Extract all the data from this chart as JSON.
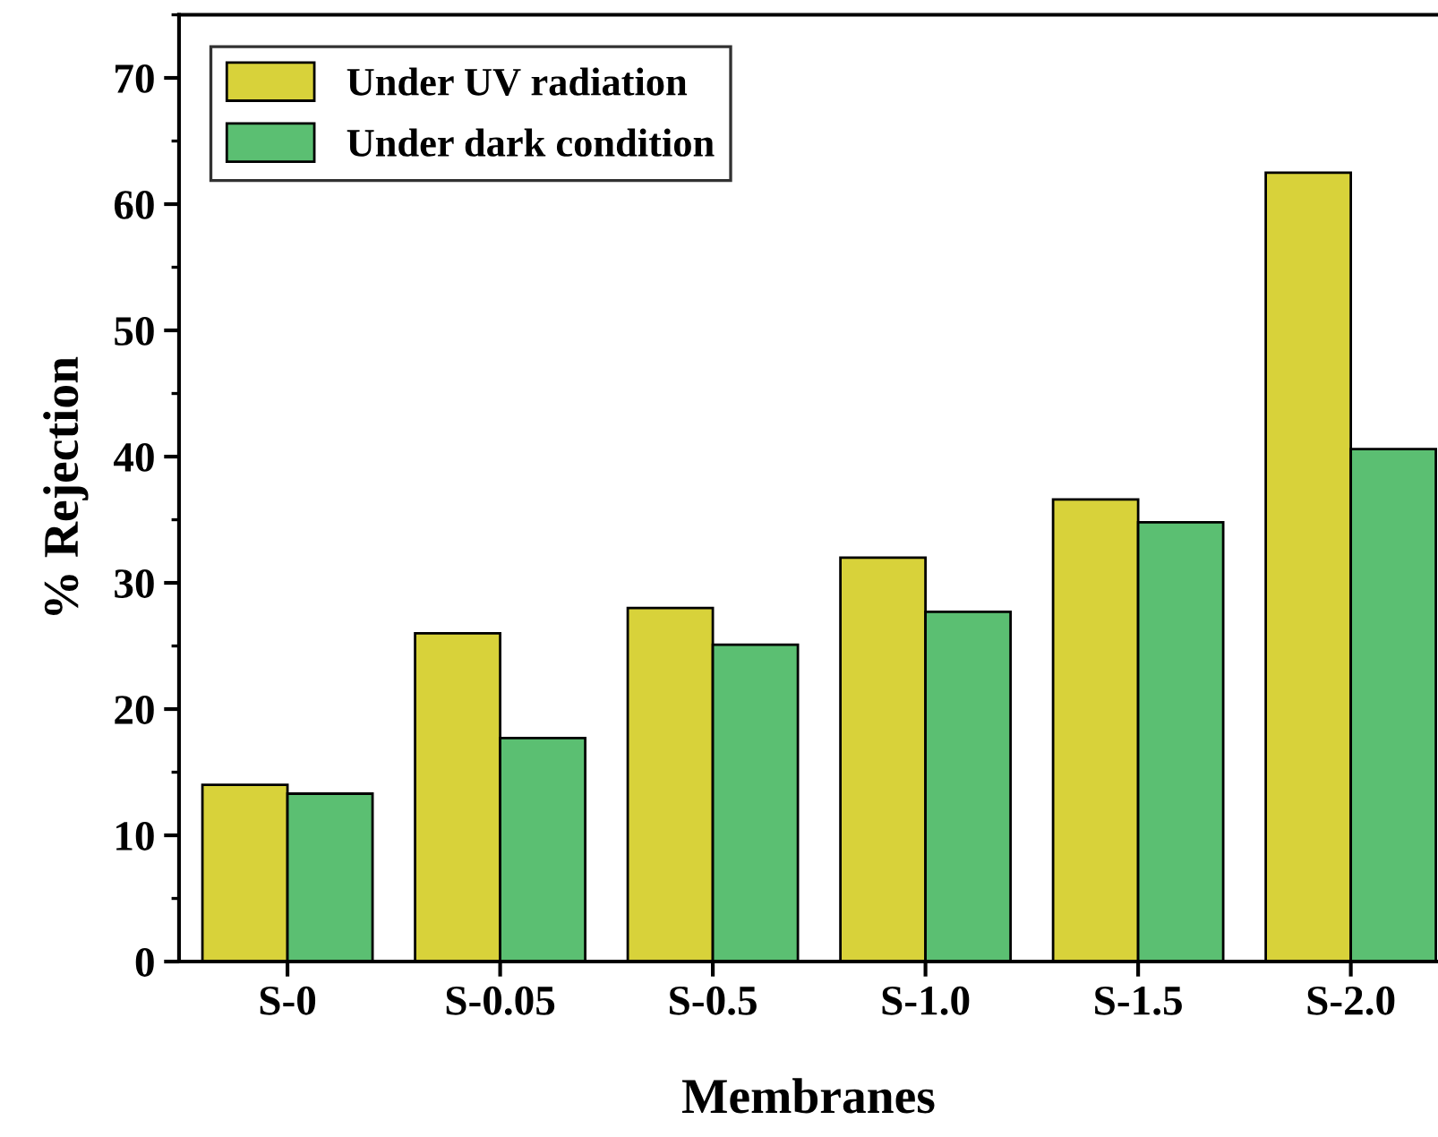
{
  "chart_data": {
    "type": "bar",
    "xlabel": "Membranes",
    "ylabel": "% Rejection",
    "categories": [
      "S-0",
      "S-0.05",
      "S-0.5",
      "S-1.0",
      "S-1.5",
      "S-2.0"
    ],
    "series": [
      {
        "name": "Under UV radiation",
        "color": "#d8d23a",
        "values": [
          14.0,
          26.0,
          28.0,
          32.0,
          36.6,
          62.5
        ]
      },
      {
        "name": "Under dark condition",
        "color": "#5bbf72",
        "values": [
          13.3,
          17.7,
          25.1,
          27.7,
          34.8,
          40.6
        ]
      }
    ],
    "ylim": [
      0,
      75
    ],
    "yticks": [
      0,
      10,
      20,
      30,
      40,
      50,
      60,
      70
    ],
    "grid": false,
    "legend": "top left"
  }
}
